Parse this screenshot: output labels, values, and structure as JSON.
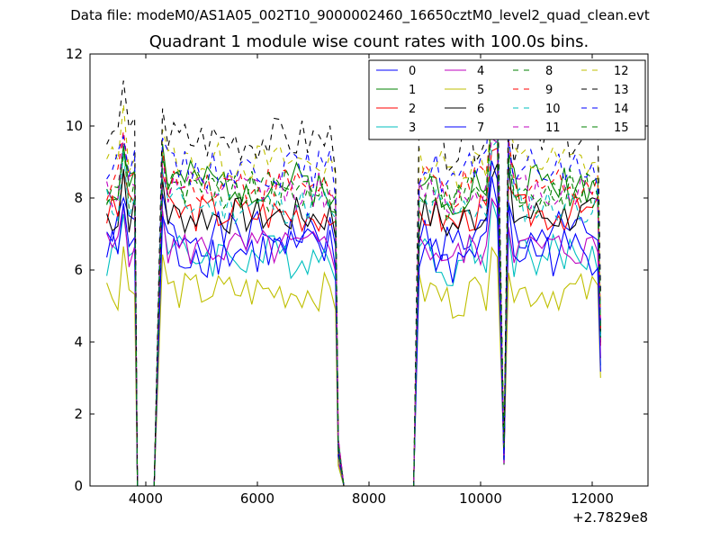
{
  "figure": {
    "suptitle": "Data file: modeM0/AS1A05_002T10_9000002460_16650cztM0_level2_quad_clean.evt",
    "offset_label": "+2.7829e8"
  },
  "chart_data": {
    "type": "line",
    "title": "Quadrant 1 module wise count rates with 100.0s bins.",
    "xlabel": "",
    "ylabel": "",
    "xlim": [
      3000,
      13000
    ],
    "ylim": [
      0,
      12
    ],
    "x_offset": 278290000,
    "xticks": [
      4000,
      6000,
      8000,
      10000,
      12000
    ],
    "yticks": [
      0,
      2,
      4,
      6,
      8,
      10,
      12
    ],
    "grid": false,
    "legend": {
      "location": "top-right",
      "columns": 4
    },
    "segment_x": [
      [
        3300,
        3400,
        3500,
        3600,
        3700
      ],
      [
        4300,
        4400,
        4500,
        4600,
        4700,
        4800,
        4900,
        5000,
        5100,
        5200,
        5300,
        5400,
        5500,
        5600,
        5700,
        5800,
        5900,
        6000,
        6100,
        6200,
        6300,
        6400,
        6500,
        6600,
        6700,
        6800,
        6900,
        7000,
        7100,
        7200,
        7300
      ],
      [
        8900,
        9000,
        9100,
        9200,
        9300,
        9400,
        9500,
        9600,
        9700,
        9800,
        9900,
        10000,
        10100,
        10200
      ],
      [
        10500,
        10600,
        10700,
        10800,
        10900,
        11000,
        11100,
        11200,
        11300,
        11400,
        11500,
        11600,
        11700,
        11800,
        11900,
        12000,
        12100
      ]
    ],
    "gaps": [
      {
        "from": 3700,
        "points": [
          [
            3800,
            7.8
          ],
          [
            3850,
            0
          ],
          [
            4000,
            0
          ],
          [
            4150,
            0
          ]
        ],
        "to": 4300
      },
      {
        "from": 7300,
        "points": [
          [
            7400,
            7.0
          ],
          [
            7450,
            1.0
          ],
          [
            7550,
            0
          ],
          [
            7700,
            0
          ],
          [
            8000,
            0
          ],
          [
            8400,
            0
          ],
          [
            8800,
            0
          ]
        ],
        "to": 8900
      },
      {
        "from": 10200,
        "points": [
          [
            10300,
            9.0
          ],
          [
            10420,
            0.8
          ]
        ],
        "to": 10500
      },
      {
        "from": 12100,
        "points": [
          [
            12150,
            4.0
          ]
        ],
        "to": null
      }
    ],
    "series": [
      {
        "name": "0",
        "color": "#0000ff",
        "dash": "solid",
        "level": 7.0,
        "amp": 0.35,
        "seed": 1
      },
      {
        "name": "1",
        "color": "#008000",
        "dash": "solid",
        "level": 8.4,
        "amp": 0.35,
        "seed": 2
      },
      {
        "name": "2",
        "color": "#ff0000",
        "dash": "solid",
        "level": 7.6,
        "amp": 0.3,
        "seed": 3
      },
      {
        "name": "3",
        "color": "#00bfbf",
        "dash": "solid",
        "level": 6.4,
        "amp": 0.35,
        "seed": 4
      },
      {
        "name": "4",
        "color": "#bf00bf",
        "dash": "solid",
        "level": 6.6,
        "amp": 0.3,
        "seed": 5
      },
      {
        "name": "5",
        "color": "#bfbf00",
        "dash": "solid",
        "level": 5.4,
        "amp": 0.3,
        "seed": 6
      },
      {
        "name": "6",
        "color": "#000000",
        "dash": "solid",
        "level": 7.5,
        "amp": 0.3,
        "seed": 7
      },
      {
        "name": "7",
        "color": "#0000ff",
        "dash": "solid",
        "level": 6.5,
        "amp": 0.4,
        "seed": 8
      },
      {
        "name": "8",
        "color": "#008000",
        "dash": "dashed",
        "level": 8.1,
        "amp": 0.3,
        "seed": 9
      },
      {
        "name": "9",
        "color": "#ff0000",
        "dash": "dashed",
        "level": 8.4,
        "amp": 0.3,
        "seed": 10
      },
      {
        "name": "10",
        "color": "#00bfbf",
        "dash": "dashed",
        "level": 7.8,
        "amp": 0.3,
        "seed": 11
      },
      {
        "name": "11",
        "color": "#bf00bf",
        "dash": "dashed",
        "level": 8.2,
        "amp": 0.3,
        "seed": 12
      },
      {
        "name": "12",
        "color": "#bfbf00",
        "dash": "dashed",
        "level": 9.0,
        "amp": 0.3,
        "seed": 13
      },
      {
        "name": "13",
        "color": "#000000",
        "dash": "dashed",
        "level": 9.6,
        "amp": 0.35,
        "seed": 14
      },
      {
        "name": "14",
        "color": "#0000ff",
        "dash": "dashed",
        "level": 8.8,
        "amp": 0.3,
        "seed": 15
      },
      {
        "name": "15",
        "color": "#008000",
        "dash": "dashed",
        "level": 8.3,
        "amp": 0.3,
        "seed": 16
      }
    ]
  }
}
